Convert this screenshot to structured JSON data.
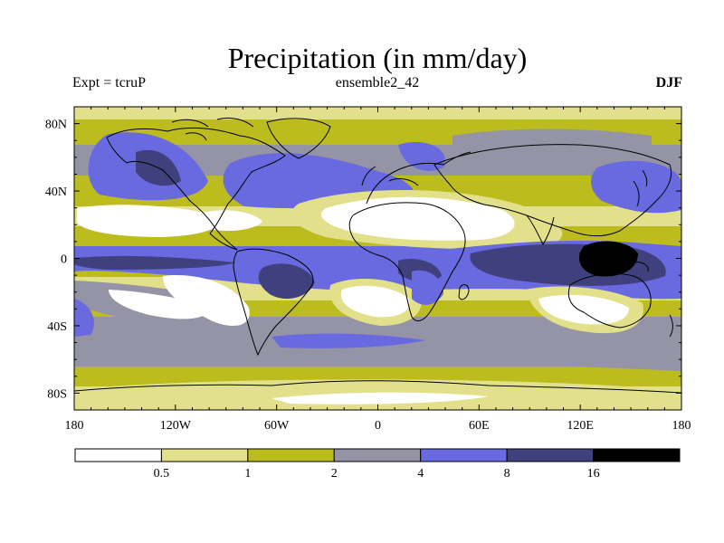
{
  "title": "Precipitation (in mm/day)",
  "experiment_label": "Expt = tcruP",
  "ensemble_label": "ensemble2_42",
  "season_label": "DJF",
  "map": {
    "projection": "cylindrical equidistant",
    "lon_range": [
      -180,
      180
    ],
    "lat_range": [
      -90,
      90
    ],
    "x_tick_labels": [
      {
        "lon": -180,
        "label": "180"
      },
      {
        "lon": -120,
        "label": "120W"
      },
      {
        "lon": -60,
        "label": "60W"
      },
      {
        "lon": 0,
        "label": "0"
      },
      {
        "lon": 60,
        "label": "60E"
      },
      {
        "lon": 120,
        "label": "120E"
      },
      {
        "lon": 180,
        "label": "180"
      }
    ],
    "y_tick_labels": [
      {
        "lat": 80,
        "label": "80N"
      },
      {
        "lat": 40,
        "label": "40N"
      },
      {
        "lat": 0,
        "label": "0"
      },
      {
        "lat": -40,
        "label": "40S"
      },
      {
        "lat": -80,
        "label": "80S"
      }
    ]
  },
  "colorbar": {
    "thresholds": [
      "0.5",
      "1",
      "2",
      "4",
      "8",
      "16"
    ],
    "colors": [
      "#ffffff",
      "#e3e08c",
      "#bcbc1e",
      "#9494a6",
      "#6a6ae0",
      "#40407e",
      "#000000"
    ]
  }
}
